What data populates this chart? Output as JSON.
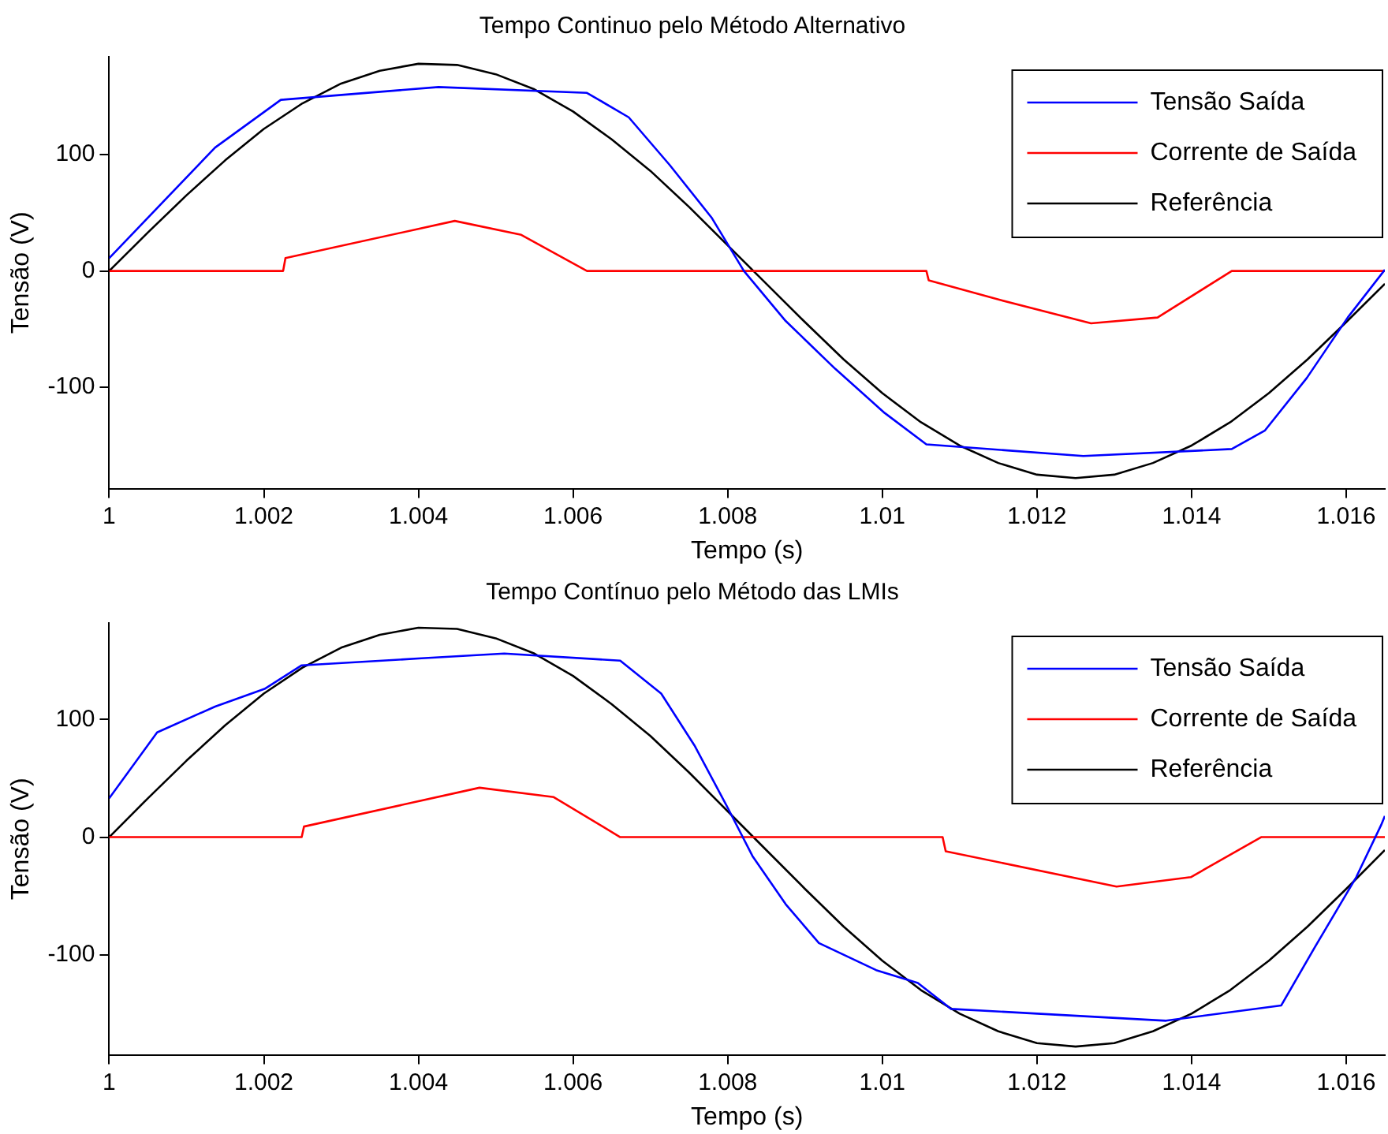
{
  "chart_data": [
    {
      "type": "line",
      "title": "Tempo Continuo pelo Método Alternativo",
      "xlabel": "Tempo (s)",
      "ylabel": "Tensão (V)",
      "xlim": [
        1,
        1.0165
      ],
      "xticks": [
        1,
        1.002,
        1.004,
        1.006,
        1.008,
        1.01,
        1.012,
        1.014,
        1.016
      ],
      "ylim": [
        -187,
        184
      ],
      "yticks": [
        -100,
        0,
        100
      ],
      "grid": false,
      "legend": "top right",
      "series": [
        {
          "name": "Tensão Saída",
          "color": "#0000ff",
          "x": [
            1,
            1.00137,
            1.00222,
            1.00426,
            1.00618,
            1.00672,
            1.00725,
            1.00779,
            1.00821,
            1.00875,
            1.00939,
            1.01003,
            1.01057,
            1.0126,
            1.01452,
            1.01495,
            1.01549,
            1.01602,
            1.0165
          ],
          "values": [
            11,
            106,
            147,
            158,
            153,
            132,
            91,
            46,
            0,
            -43,
            -84,
            -122,
            -149,
            -159,
            -153,
            -137,
            -92,
            -40,
            1
          ]
        },
        {
          "name": "Corrente de Saída",
          "color": "#ff0000",
          "x": [
            1,
            1.00225,
            1.00228,
            1.00447,
            1.00533,
            1.00618,
            1.01057,
            1.0106,
            1.01153,
            1.0127,
            1.01356,
            1.01452,
            1.0165
          ],
          "values": [
            0,
            0,
            11,
            43,
            31,
            0,
            0,
            -8,
            -25,
            -45,
            -40,
            0,
            0
          ]
        },
        {
          "name": "Referência",
          "color": "#000000",
          "x": [
            1,
            1.0005,
            1.001,
            1.0015,
            1.002,
            1.0025,
            1.003,
            1.0035,
            1.004,
            1.0045,
            1.005,
            1.0055,
            1.006,
            1.0065,
            1.007,
            1.0075,
            1.008,
            1.0085,
            1.009,
            1.0095,
            1.01,
            1.0105,
            1.011,
            1.0115,
            1.012,
            1.0125,
            1.013,
            1.0135,
            1.014,
            1.0145,
            1.015,
            1.0155,
            1.016,
            1.0165
          ],
          "values": [
            0,
            33,
            65,
            95,
            122,
            144,
            161,
            172,
            178,
            177,
            169,
            156,
            137,
            113,
            86,
            55,
            22,
            -11,
            -44,
            -76,
            -105,
            -130,
            -150,
            -165,
            -175,
            -178,
            -175,
            -165,
            -150,
            -130,
            -105,
            -76,
            -44,
            -11
          ]
        }
      ]
    },
    {
      "type": "line",
      "title": "Tempo Contínuo pelo Método das LMIs",
      "xlabel": "Tempo (s)",
      "ylabel": "Tensão (V)",
      "xlim": [
        1,
        1.0165
      ],
      "xticks": [
        1,
        1.002,
        1.004,
        1.006,
        1.008,
        1.01,
        1.012,
        1.014,
        1.016
      ],
      "ylim": [
        -185,
        182
      ],
      "yticks": [
        -100,
        0,
        100
      ],
      "grid": false,
      "legend": "top right",
      "series": [
        {
          "name": "Tensão Saída",
          "color": "#0000ff",
          "x": [
            1,
            1.00062,
            1.00137,
            1.00201,
            1.00249,
            1.00404,
            1.00511,
            1.00661,
            1.00714,
            1.00757,
            1.008,
            1.00832,
            1.00875,
            1.00918,
            1.00992,
            1.01046,
            1.01089,
            1.01367,
            1.01516,
            1.01559,
            1.01613,
            1.01645,
            1.0165
          ],
          "values": [
            33,
            89,
            111,
            126,
            146,
            152,
            156,
            150,
            122,
            78,
            25,
            -16,
            -57,
            -90,
            -113,
            -124,
            -146,
            -156,
            -143,
            -94,
            -34,
            10,
            18
          ]
        },
        {
          "name": "Corrente de Saída",
          "color": "#ff0000",
          "x": [
            1,
            1.00249,
            1.00252,
            1.00479,
            1.00575,
            1.00661,
            1.01078,
            1.01082,
            1.01303,
            1.01399,
            1.0149,
            1.0165
          ],
          "values": [
            0,
            0,
            9,
            42,
            34,
            0,
            0,
            -12,
            -42,
            -34,
            0,
            0
          ]
        },
        {
          "name": "Referência",
          "color": "#000000",
          "x": [
            1,
            1.0005,
            1.001,
            1.0015,
            1.002,
            1.0025,
            1.003,
            1.0035,
            1.004,
            1.0045,
            1.005,
            1.0055,
            1.006,
            1.0065,
            1.007,
            1.0075,
            1.008,
            1.0085,
            1.009,
            1.0095,
            1.01,
            1.0105,
            1.011,
            1.0115,
            1.012,
            1.0125,
            1.013,
            1.0135,
            1.014,
            1.0145,
            1.015,
            1.0155,
            1.016,
            1.0165
          ],
          "values": [
            0,
            33,
            65,
            95,
            122,
            144,
            161,
            172,
            178,
            177,
            169,
            156,
            137,
            113,
            86,
            55,
            22,
            -11,
            -44,
            -76,
            -105,
            -130,
            -150,
            -165,
            -175,
            -178,
            -175,
            -165,
            -150,
            -130,
            -105,
            -76,
            -44,
            -11
          ]
        }
      ]
    }
  ]
}
